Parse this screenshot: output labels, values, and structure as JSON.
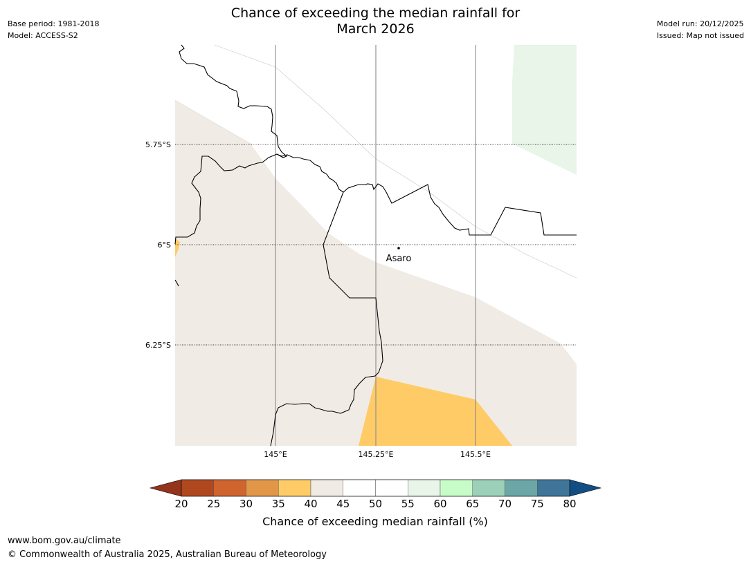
{
  "title": {
    "line1": "Chance of exceeding the median rainfall for",
    "line2": "March 2026"
  },
  "meta": {
    "base_period": "Base period: 1981-2018",
    "model": "Model: ACCESS-S2",
    "model_run": "Model run: 20/12/2025",
    "issued": "Issued: Map not issued"
  },
  "map": {
    "lat_labels": [
      "5.75°S",
      "6°S",
      "6.25°S"
    ],
    "lon_labels": [
      "145°E",
      "145.25°E",
      "145.5°E"
    ],
    "place": "Asaro",
    "colors": {
      "beige_40_45": "#f0ebe5",
      "orange_35_40": "#fecb67",
      "lightgreen_55_60": "#e8f5e8"
    }
  },
  "colorbar": {
    "label": "Chance of exceeding median rainfall (%)",
    "ticks": [
      "20",
      "25",
      "30",
      "35",
      "40",
      "45",
      "50",
      "55",
      "60",
      "65",
      "70",
      "75",
      "80"
    ],
    "colors": [
      "#b0481f",
      "#d0642e",
      "#e29647",
      "#fecb67",
      "#f0ebe5",
      "#ffffff",
      "#ffffff",
      "#e8f5e8",
      "#c7fcc9",
      "#9dd0b8",
      "#6ca6a6",
      "#3f7598"
    ],
    "under_color": "#94341b",
    "over_color": "#124e84"
  },
  "footer": {
    "url": "www.bom.gov.au/climate",
    "copyright": "© Commonwealth of Australia 2025, Australian Bureau of Meteorology"
  }
}
